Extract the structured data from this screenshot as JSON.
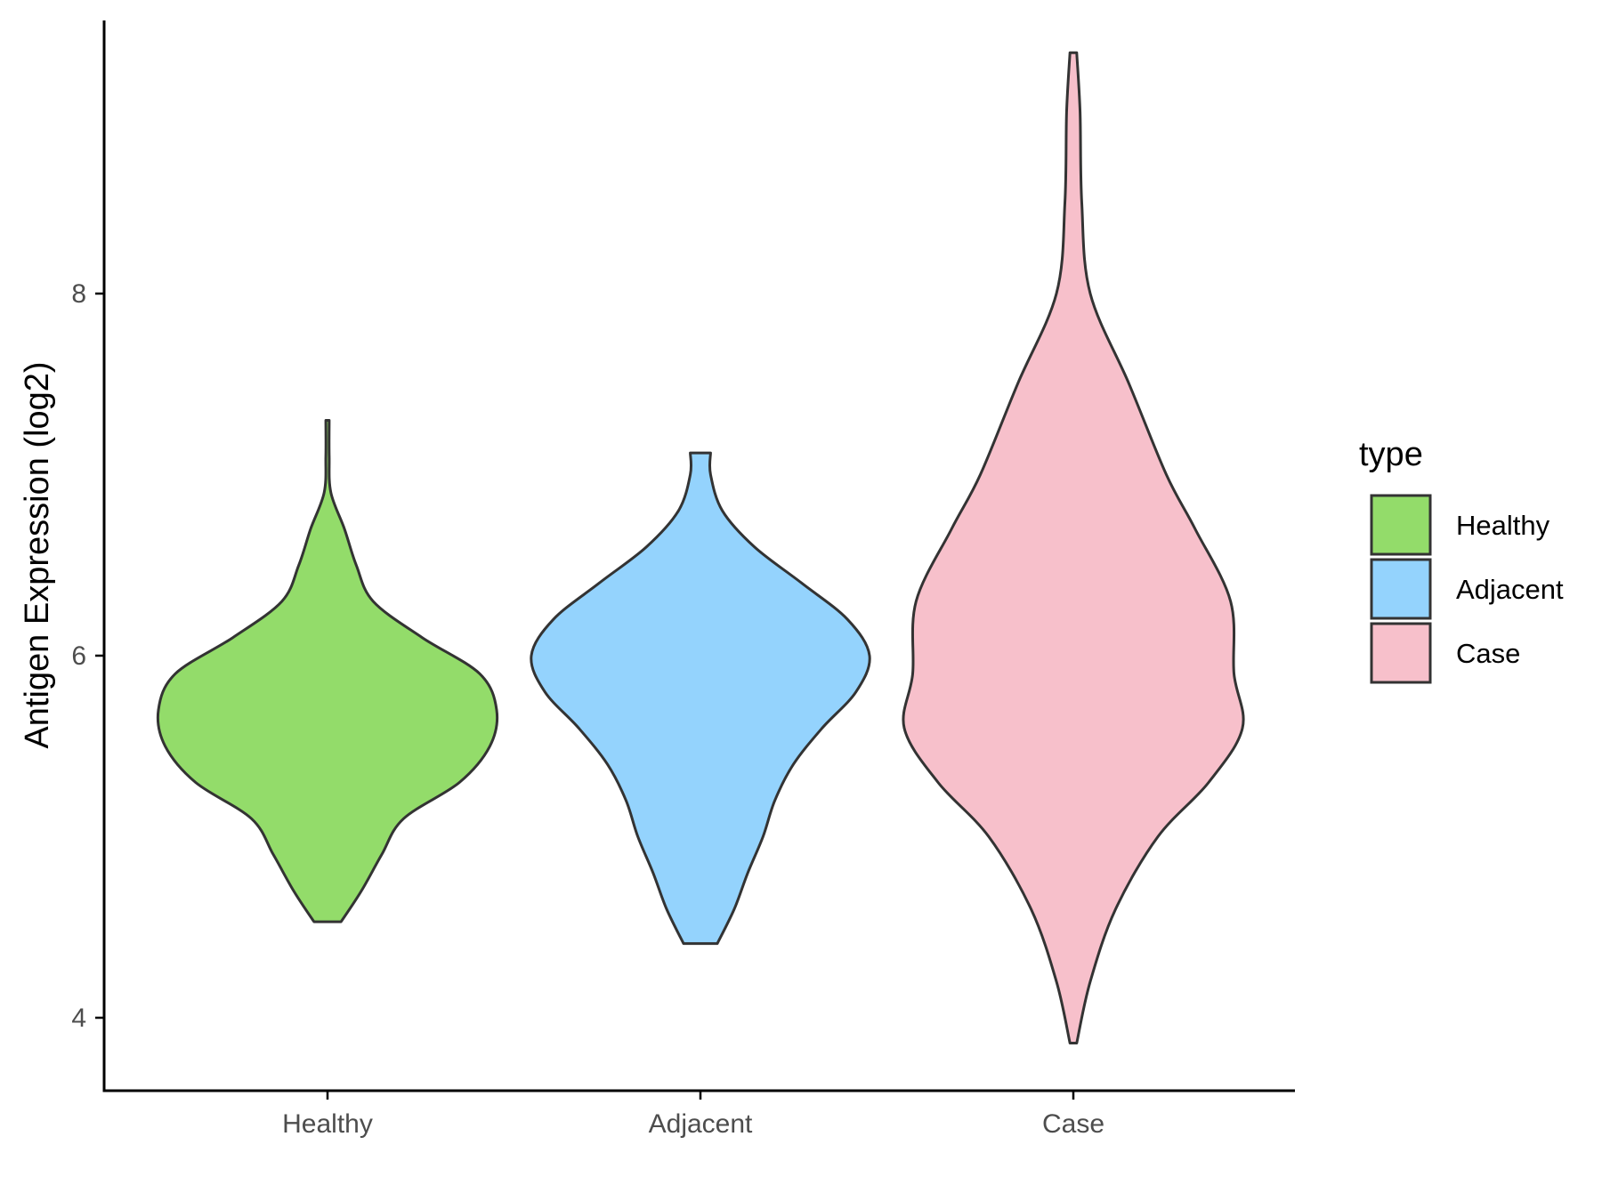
{
  "chart_data": {
    "type": "violin",
    "title": "",
    "xlabel": "",
    "ylabel": "Antigen Expression (log2)",
    "ylim": [
      3.6,
      9.5
    ],
    "yticks": [
      4,
      6,
      8
    ],
    "categories": [
      "Healthy",
      "Adjacent",
      "Case"
    ],
    "colors": {
      "Healthy": "#93dc6a",
      "Adjacent": "#94d3fd",
      "Case": "#f7c0cb"
    },
    "legend": {
      "title": "type",
      "position": "right",
      "entries": [
        "Healthy",
        "Adjacent",
        "Case"
      ]
    },
    "grid": false,
    "series": [
      {
        "name": "Healthy",
        "min": 4.53,
        "max": 7.3,
        "density_profile": [
          [
            4.53,
            0.08
          ],
          [
            4.7,
            0.2
          ],
          [
            4.9,
            0.32
          ],
          [
            5.1,
            0.45
          ],
          [
            5.3,
            0.78
          ],
          [
            5.5,
            0.96
          ],
          [
            5.7,
            1.0
          ],
          [
            5.9,
            0.9
          ],
          [
            6.1,
            0.56
          ],
          [
            6.3,
            0.27
          ],
          [
            6.5,
            0.17
          ],
          [
            6.7,
            0.1
          ],
          [
            6.9,
            0.02
          ],
          [
            7.1,
            0.01
          ],
          [
            7.3,
            0.01
          ]
        ]
      },
      {
        "name": "Adjacent",
        "min": 4.41,
        "max": 7.12,
        "density_profile": [
          [
            4.41,
            0.1
          ],
          [
            4.6,
            0.2
          ],
          [
            4.8,
            0.28
          ],
          [
            5.0,
            0.37
          ],
          [
            5.2,
            0.44
          ],
          [
            5.4,
            0.55
          ],
          [
            5.6,
            0.72
          ],
          [
            5.8,
            0.92
          ],
          [
            6.0,
            1.0
          ],
          [
            6.2,
            0.87
          ],
          [
            6.4,
            0.6
          ],
          [
            6.6,
            0.32
          ],
          [
            6.8,
            0.13
          ],
          [
            7.0,
            0.06
          ],
          [
            7.12,
            0.06
          ]
        ]
      },
      {
        "name": "Case",
        "min": 3.86,
        "max": 9.33,
        "density_profile": [
          [
            3.86,
            0.02
          ],
          [
            4.2,
            0.1
          ],
          [
            4.6,
            0.25
          ],
          [
            5.0,
            0.5
          ],
          [
            5.3,
            0.8
          ],
          [
            5.6,
            1.0
          ],
          [
            5.9,
            0.95
          ],
          [
            6.3,
            0.93
          ],
          [
            6.7,
            0.72
          ],
          [
            7.0,
            0.55
          ],
          [
            7.5,
            0.33
          ],
          [
            8.0,
            0.1
          ],
          [
            8.5,
            0.05
          ],
          [
            9.0,
            0.04
          ],
          [
            9.33,
            0.02
          ]
        ]
      }
    ]
  }
}
